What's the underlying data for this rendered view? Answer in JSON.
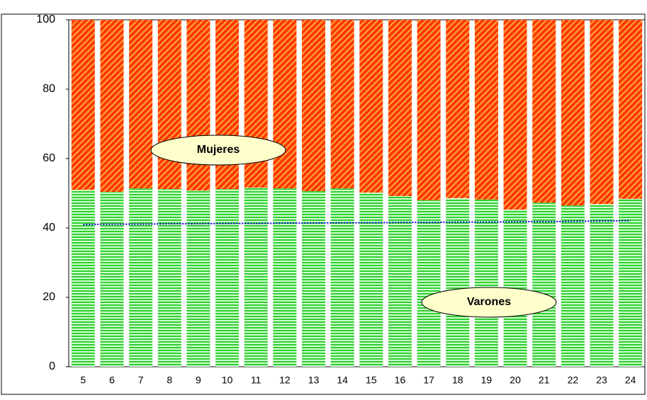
{
  "chart_data": {
    "type": "stacked-bar",
    "categories": [
      "5",
      "6",
      "7",
      "8",
      "9",
      "10",
      "11",
      "12",
      "13",
      "14",
      "15",
      "16",
      "17",
      "18",
      "19",
      "20",
      "21",
      "22",
      "23",
      "24"
    ],
    "series": [
      {
        "name": "Varones",
        "color": "#33cc33",
        "values": [
          51.0,
          50.4,
          51.4,
          51.2,
          50.8,
          51.2,
          51.6,
          51.4,
          50.6,
          51.4,
          50.2,
          49.2,
          48.0,
          48.6,
          48.2,
          45.3,
          47.3,
          46.5,
          46.9,
          48.4
        ]
      },
      {
        "name": "Mujeres",
        "color": "#ff3300",
        "values": [
          49.0,
          49.6,
          48.6,
          48.8,
          49.2,
          48.8,
          48.4,
          48.6,
          49.4,
          48.6,
          49.8,
          50.8,
          52.0,
          51.4,
          51.8,
          54.7,
          52.7,
          53.5,
          53.1,
          51.6
        ]
      }
    ],
    "reference_line": {
      "color": "#0000cc",
      "values": [
        41.0,
        41.1,
        41.1,
        41.2,
        41.2,
        41.3,
        41.3,
        41.4,
        41.4,
        41.5,
        41.5,
        41.6,
        41.6,
        41.7,
        41.7,
        41.8,
        41.8,
        41.9,
        42.0,
        42.1
      ]
    },
    "ylim": [
      0,
      100
    ],
    "yticks": [
      0,
      20,
      40,
      60,
      80,
      100
    ]
  }
}
